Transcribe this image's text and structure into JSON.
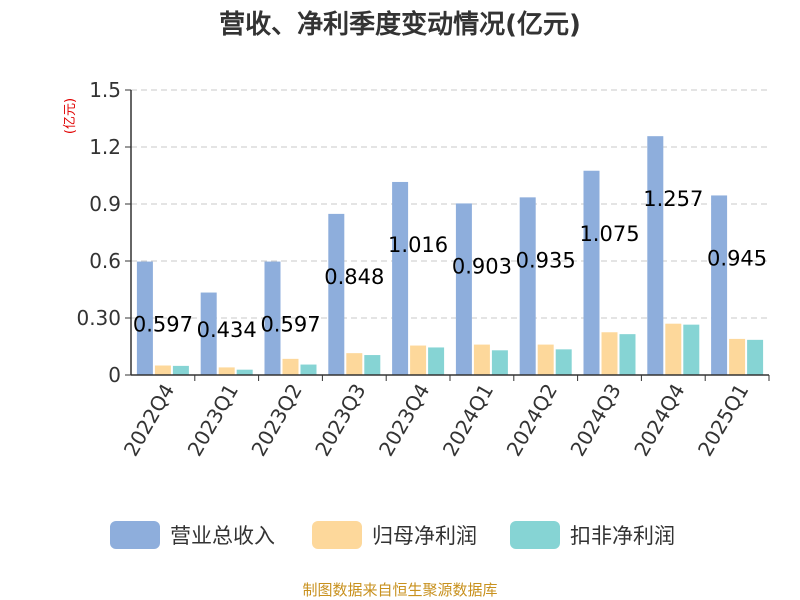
{
  "chart_data": {
    "type": "bar",
    "title": "营收、净利季度变动情况(亿元)",
    "ylabel": "(亿元)",
    "ylim": [
      0,
      1.5
    ],
    "yticks": [
      "0",
      "0.30",
      "0.6",
      "0.9",
      "1.2",
      "1.5"
    ],
    "ytick_values": [
      0,
      0.3,
      0.6,
      0.9,
      1.2,
      1.5
    ],
    "grid": true,
    "legend_position": "bottom",
    "categories": [
      "2022Q4",
      "2023Q1",
      "2023Q2",
      "2023Q3",
      "2023Q4",
      "2024Q1",
      "2024Q2",
      "2024Q3",
      "2024Q4",
      "2025Q1"
    ],
    "series": [
      {
        "name": "营业总收入",
        "color": "#8eaedc",
        "values": [
          0.597,
          0.434,
          0.597,
          0.848,
          1.016,
          0.903,
          0.935,
          1.075,
          1.257,
          0.945
        ],
        "labels": [
          "0.597",
          "0.434",
          "0.597",
          "0.848",
          "1.016",
          "0.903",
          "0.935",
          "1.075",
          "1.257",
          "0.945"
        ]
      },
      {
        "name": "归母净利润",
        "color": "#fdd89b",
        "values": [
          0.05,
          0.04,
          0.085,
          0.115,
          0.155,
          0.16,
          0.16,
          0.225,
          0.27,
          0.19
        ]
      },
      {
        "name": "扣非净利润",
        "color": "#86d4d4",
        "values": [
          0.048,
          0.028,
          0.055,
          0.105,
          0.145,
          0.13,
          0.135,
          0.215,
          0.265,
          0.185
        ]
      }
    ],
    "source": "制图数据来自恒生聚源数据库"
  }
}
